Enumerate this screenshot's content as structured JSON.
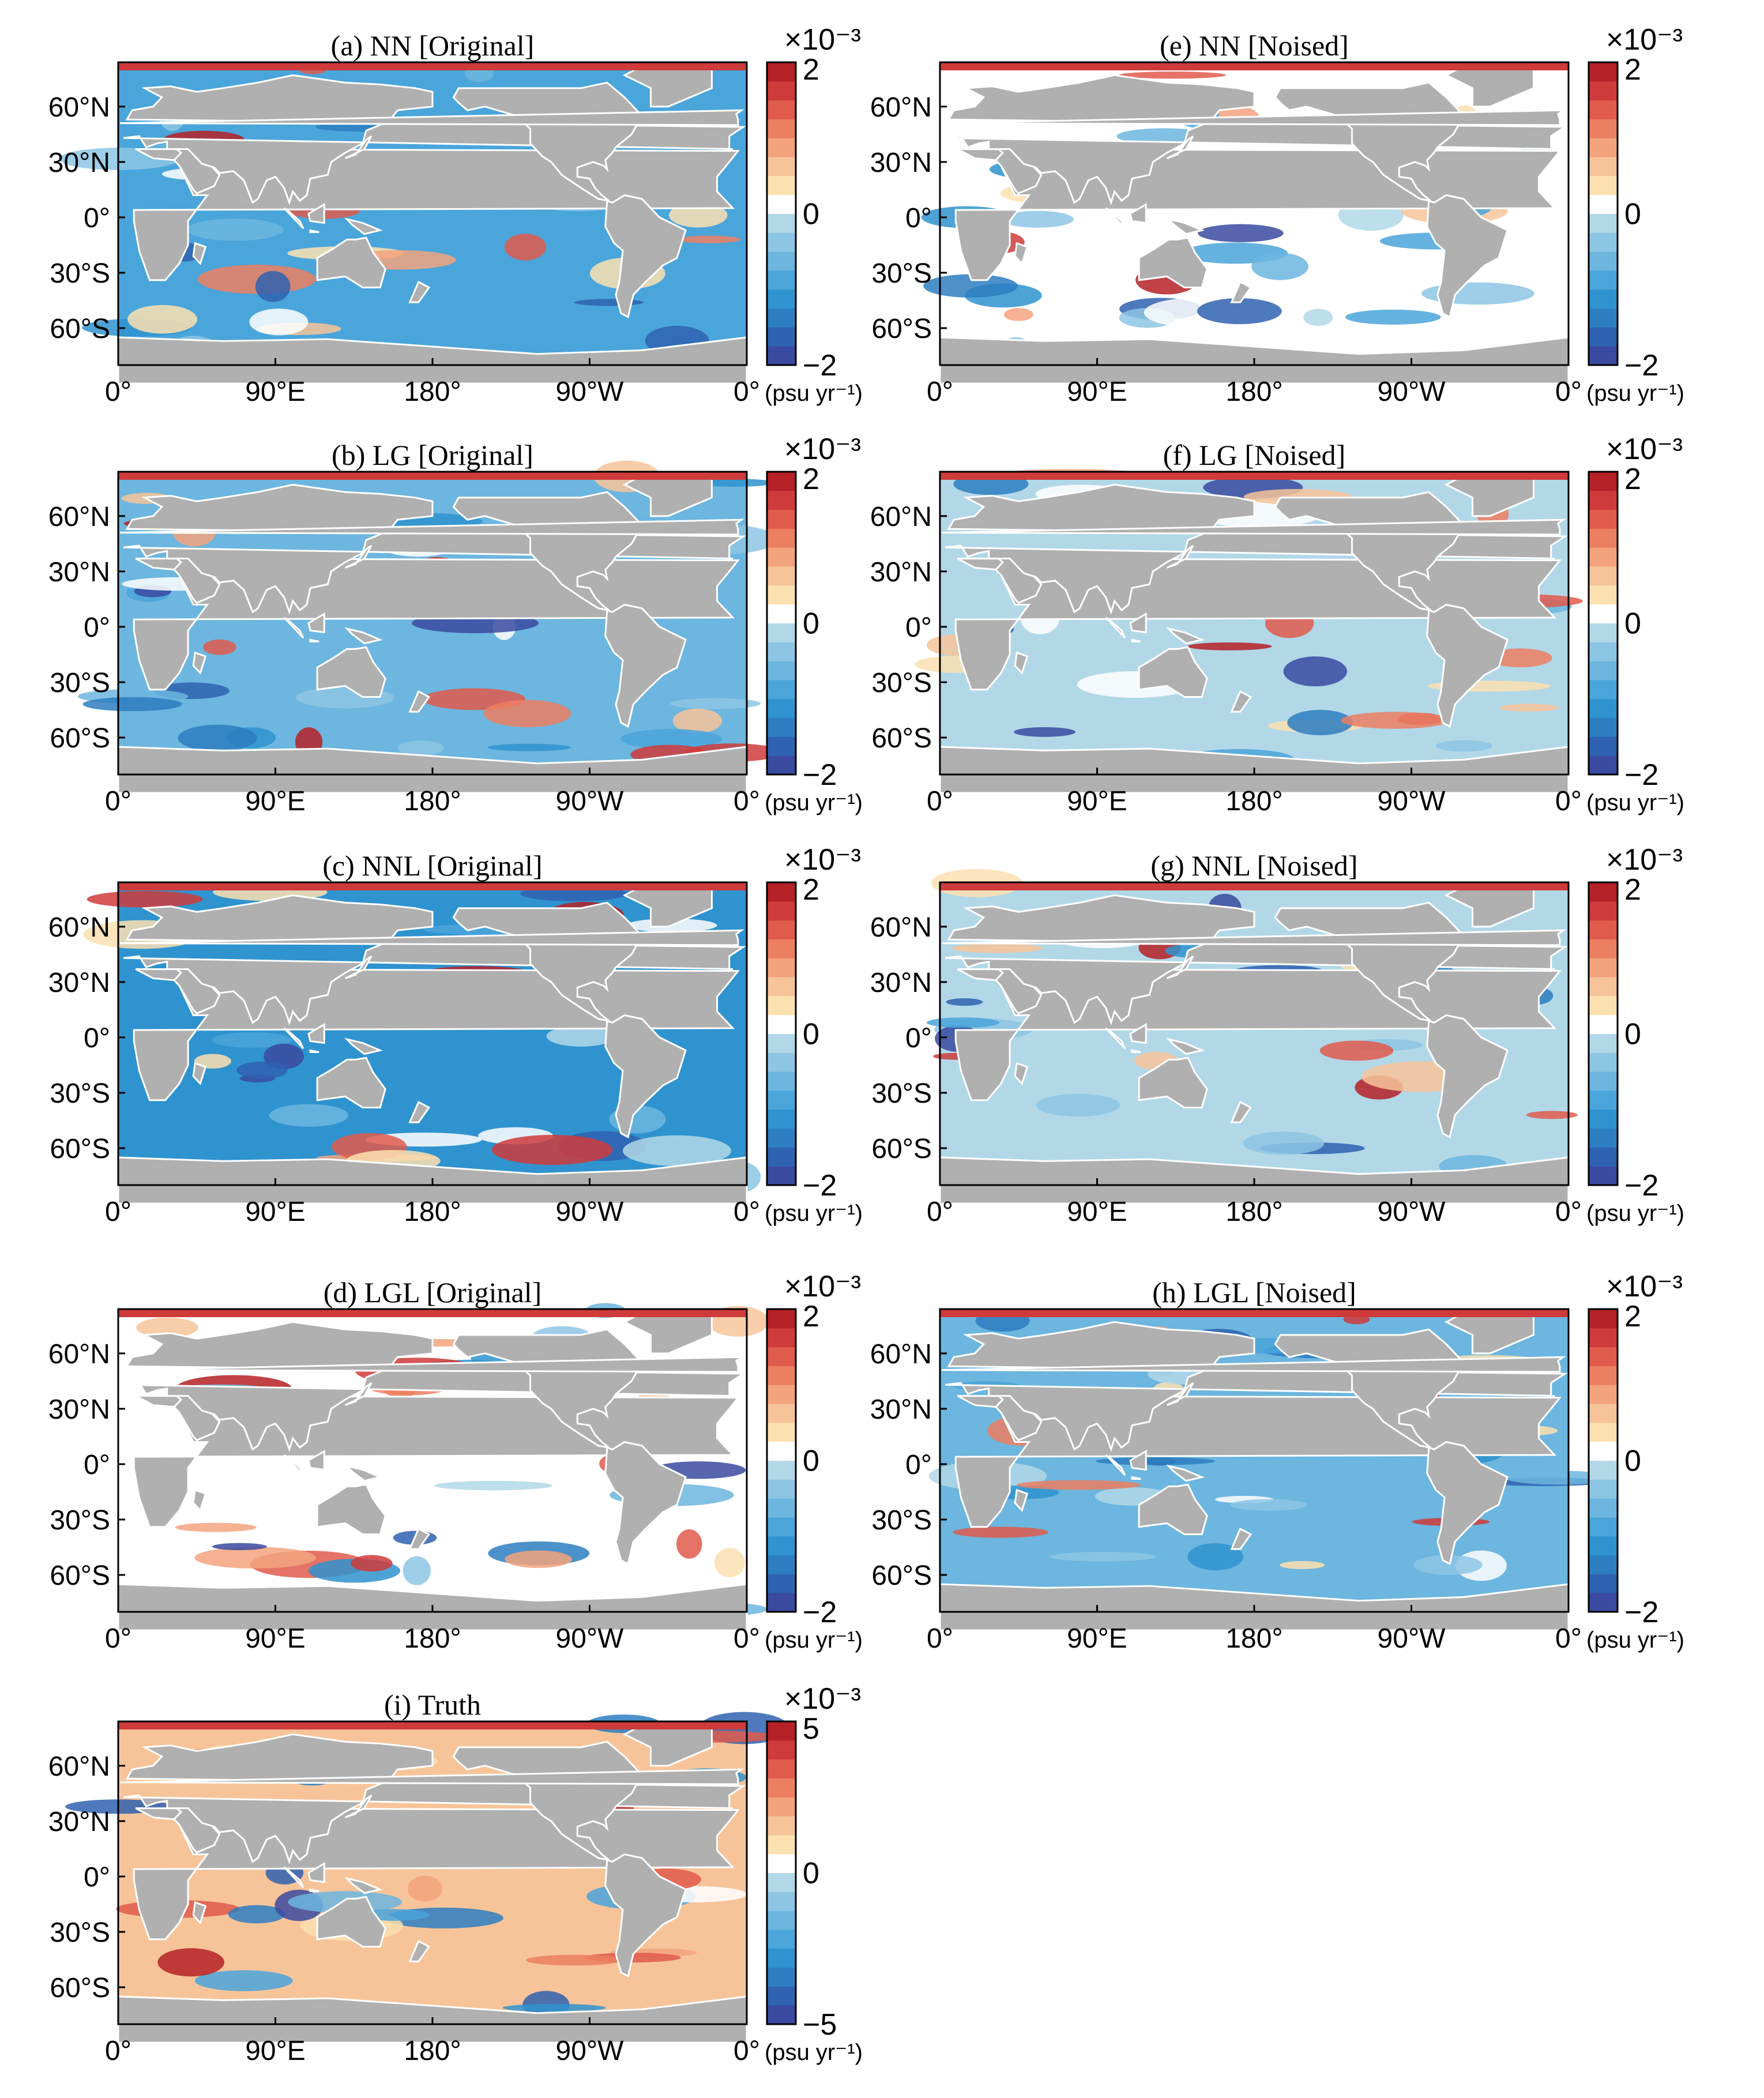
{
  "figure": {
    "lat_tick_labels": [
      "60°N",
      "30°N",
      "0°",
      "30°S",
      "60°S"
    ],
    "lon_tick_labels": [
      "0°",
      "90°E",
      "180°",
      "90°W",
      "0°"
    ],
    "units_label": "(psu yr⁻¹)",
    "colorbar_exponent": "×10⁻³",
    "land_color": "#b0b0b0",
    "coast_color": "#ffffff",
    "palette": [
      "#3a4aa0",
      "#2f62b0",
      "#2d7ec1",
      "#2f93cf",
      "#4aa5db",
      "#6cb6df",
      "#8dc6e4",
      "#b2d8e8",
      "#ffffff",
      "#fbe1b0",
      "#f7c49a",
      "#f3a37e",
      "#ec7f62",
      "#e15b4c",
      "#cf3b3b",
      "#b52126"
    ]
  },
  "panels": [
    {
      "id": "a",
      "title": "(a) NN [Original]",
      "cb_max": "2",
      "cb_zero": "0",
      "cb_min": "−2",
      "ocean_class": 4
    },
    {
      "id": "e",
      "title": "(e) NN [Noised]",
      "cb_max": "2",
      "cb_zero": "0",
      "cb_min": "−2",
      "ocean_class": 8
    },
    {
      "id": "b",
      "title": "(b) LG [Original]",
      "cb_max": "2",
      "cb_zero": "0",
      "cb_min": "−2",
      "ocean_class": 5
    },
    {
      "id": "f",
      "title": "(f) LG [Noised]",
      "cb_max": "2",
      "cb_zero": "0",
      "cb_min": "−2",
      "ocean_class": 7
    },
    {
      "id": "c",
      "title": "(c) NNL [Original]",
      "cb_max": "2",
      "cb_zero": "0",
      "cb_min": "−2",
      "ocean_class": 3
    },
    {
      "id": "g",
      "title": "(g) NNL [Noised]",
      "cb_max": "2",
      "cb_zero": "0",
      "cb_min": "−2",
      "ocean_class": 7
    },
    {
      "id": "d",
      "title": "(d) LGL [Original]",
      "cb_max": "2",
      "cb_zero": "0",
      "cb_min": "−2",
      "ocean_class": 8
    },
    {
      "id": "h",
      "title": "(h) LGL [Noised]",
      "cb_max": "2",
      "cb_zero": "0",
      "cb_min": "−2",
      "ocean_class": 5
    },
    {
      "id": "i",
      "title": "(i) Truth",
      "cb_max": "5",
      "cb_zero": "0",
      "cb_min": "−5",
      "ocean_class": 10
    }
  ]
}
